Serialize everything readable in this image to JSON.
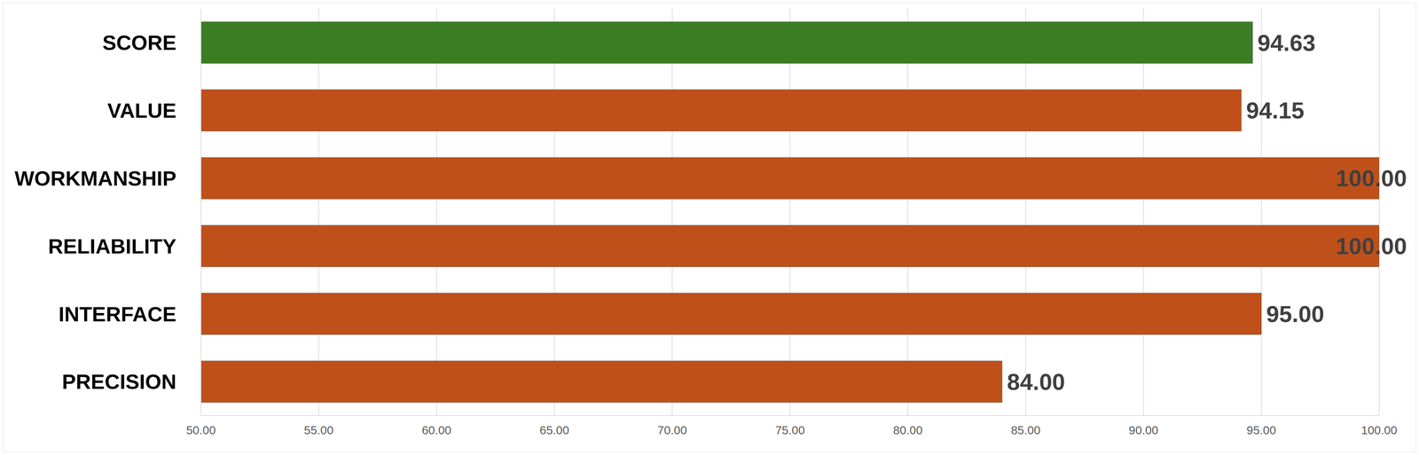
{
  "chart_data": {
    "type": "bar",
    "orientation": "horizontal",
    "categories": [
      "SCORE",
      "VALUE",
      "WORKMANSHIP",
      "RELIABILITY",
      "INTERFACE",
      "PRECISION"
    ],
    "values": [
      94.63,
      94.15,
      100,
      100,
      95,
      84
    ],
    "value_labels": [
      "94.63",
      "94.15",
      "100.00",
      "100.00",
      "95.00",
      "84.00"
    ],
    "colors": [
      "#3a7d23",
      "#c0501a",
      "#c0501a",
      "#c0501a",
      "#c0501a",
      "#c0501a"
    ],
    "xlim": [
      50,
      100
    ],
    "xticks": [
      {
        "value": 50,
        "label": "50.00"
      },
      {
        "value": 55,
        "label": "55.00"
      },
      {
        "value": 60,
        "label": "60.00"
      },
      {
        "value": 65,
        "label": "65.00"
      },
      {
        "value": 70,
        "label": "70.00"
      },
      {
        "value": 75,
        "label": "75.00"
      },
      {
        "value": 80,
        "label": "80.00"
      },
      {
        "value": 85,
        "label": "85.00"
      },
      {
        "value": 90,
        "label": "90.00"
      },
      {
        "value": 95,
        "label": "95.00"
      },
      {
        "value": 100,
        "label": "100.00"
      }
    ],
    "grid": true,
    "data_labels": true
  }
}
